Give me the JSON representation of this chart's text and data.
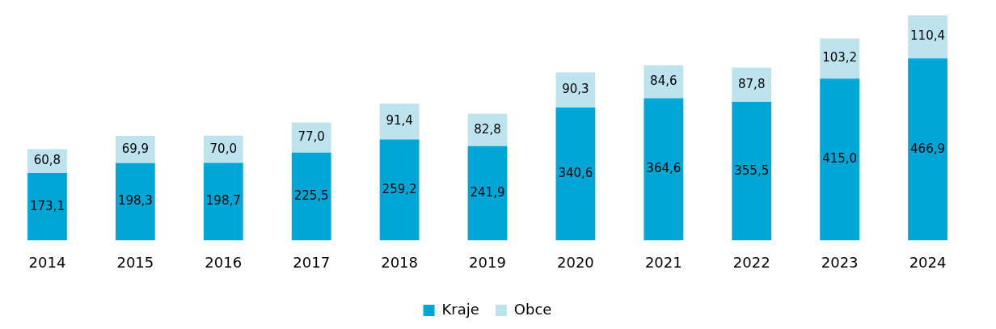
{
  "chart_data": {
    "type": "bar",
    "stacked": true,
    "categories": [
      "2014",
      "2015",
      "2016",
      "2017",
      "2018",
      "2019",
      "2020",
      "2021",
      "2022",
      "2023",
      "2024"
    ],
    "series": [
      {
        "name": "Kraje",
        "color": "#00a6d6",
        "values": [
          173.1,
          198.3,
          198.7,
          225.5,
          259.2,
          241.9,
          340.6,
          364.6,
          355.5,
          415.0,
          466.9
        ],
        "value_labels": [
          "173,1",
          "198,3",
          "198,7",
          "225,5",
          "259,2",
          "241,9",
          "340,6",
          "364,6",
          "355,5",
          "415,0",
          "466,9"
        ]
      },
      {
        "name": "Obce",
        "color": "#bde3ee",
        "values": [
          60.8,
          69.9,
          70.0,
          77.0,
          91.4,
          82.8,
          90.3,
          84.6,
          87.8,
          103.2,
          110.4
        ],
        "value_labels": [
          "60,8",
          "69,9",
          "70,0",
          "77,0",
          "91,4",
          "82,8",
          "90,3",
          "84,6",
          "87,8",
          "103,2",
          "110,4"
        ]
      }
    ],
    "legend": "bottom",
    "grid": false,
    "tick_labels": "x"
  }
}
